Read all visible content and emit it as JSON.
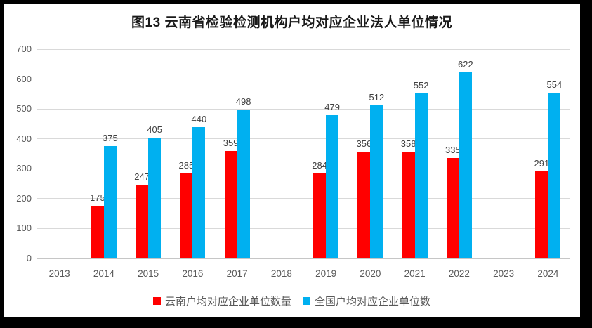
{
  "chart_data": {
    "type": "bar",
    "title": "图13 云南省检验检测机构户均对应企业法人单位情况",
    "categories": [
      "2013",
      "2014",
      "2015",
      "2016",
      "2017",
      "2018",
      "2019",
      "2020",
      "2021",
      "2022",
      "2023",
      "2024"
    ],
    "series": [
      {
        "name": "云南户均对应企业单位数量",
        "color": "#FF0000",
        "values": [
          null,
          175,
          247,
          285,
          359,
          null,
          284,
          356,
          358,
          335,
          null,
          291
        ]
      },
      {
        "name": "全国户均对应企业单位数",
        "color": "#00B0F0",
        "values": [
          null,
          375,
          405,
          440,
          498,
          null,
          479,
          512,
          552,
          622,
          null,
          554
        ]
      }
    ],
    "xlabel": "",
    "ylabel": "",
    "ylim": [
      0,
      700
    ],
    "ytick_step": 100,
    "grid": "horizontal",
    "legend_position": "bottom",
    "data_labels": "above-bars"
  }
}
